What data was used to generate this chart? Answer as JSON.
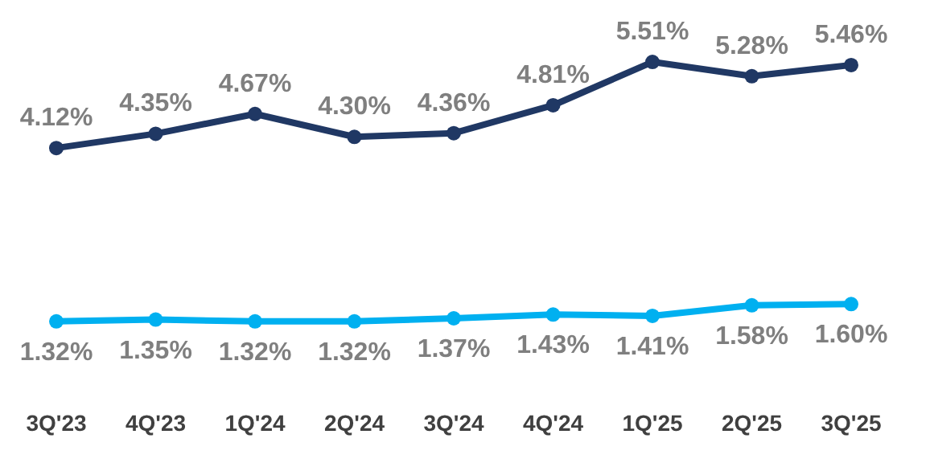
{
  "chart_data": {
    "type": "line",
    "categories": [
      "3Q'23",
      "4Q'23",
      "1Q'24",
      "2Q'24",
      "3Q'24",
      "4Q'24",
      "1Q'25",
      "2Q'25",
      "3Q'25"
    ],
    "series": [
      {
        "color": "#203864",
        "values": [
          4.12,
          4.35,
          4.67,
          4.3,
          4.36,
          4.81,
          5.51,
          5.28,
          5.46
        ],
        "value_labels": [
          "4.12%",
          "4.35%",
          "4.67%",
          "4.30%",
          "4.36%",
          "4.81%",
          "5.51%",
          "5.28%",
          "5.46%"
        ]
      },
      {
        "color": "#00b0f0",
        "values": [
          1.32,
          1.35,
          1.32,
          1.32,
          1.37,
          1.43,
          1.41,
          1.58,
          1.6
        ],
        "value_labels": [
          "1.32%",
          "1.35%",
          "1.32%",
          "1.32%",
          "1.37%",
          "1.43%",
          "1.41%",
          "1.58%",
          "1.60%"
        ]
      }
    ],
    "tick_labels": "x",
    "marker": "circle",
    "line_style": "solid"
  }
}
